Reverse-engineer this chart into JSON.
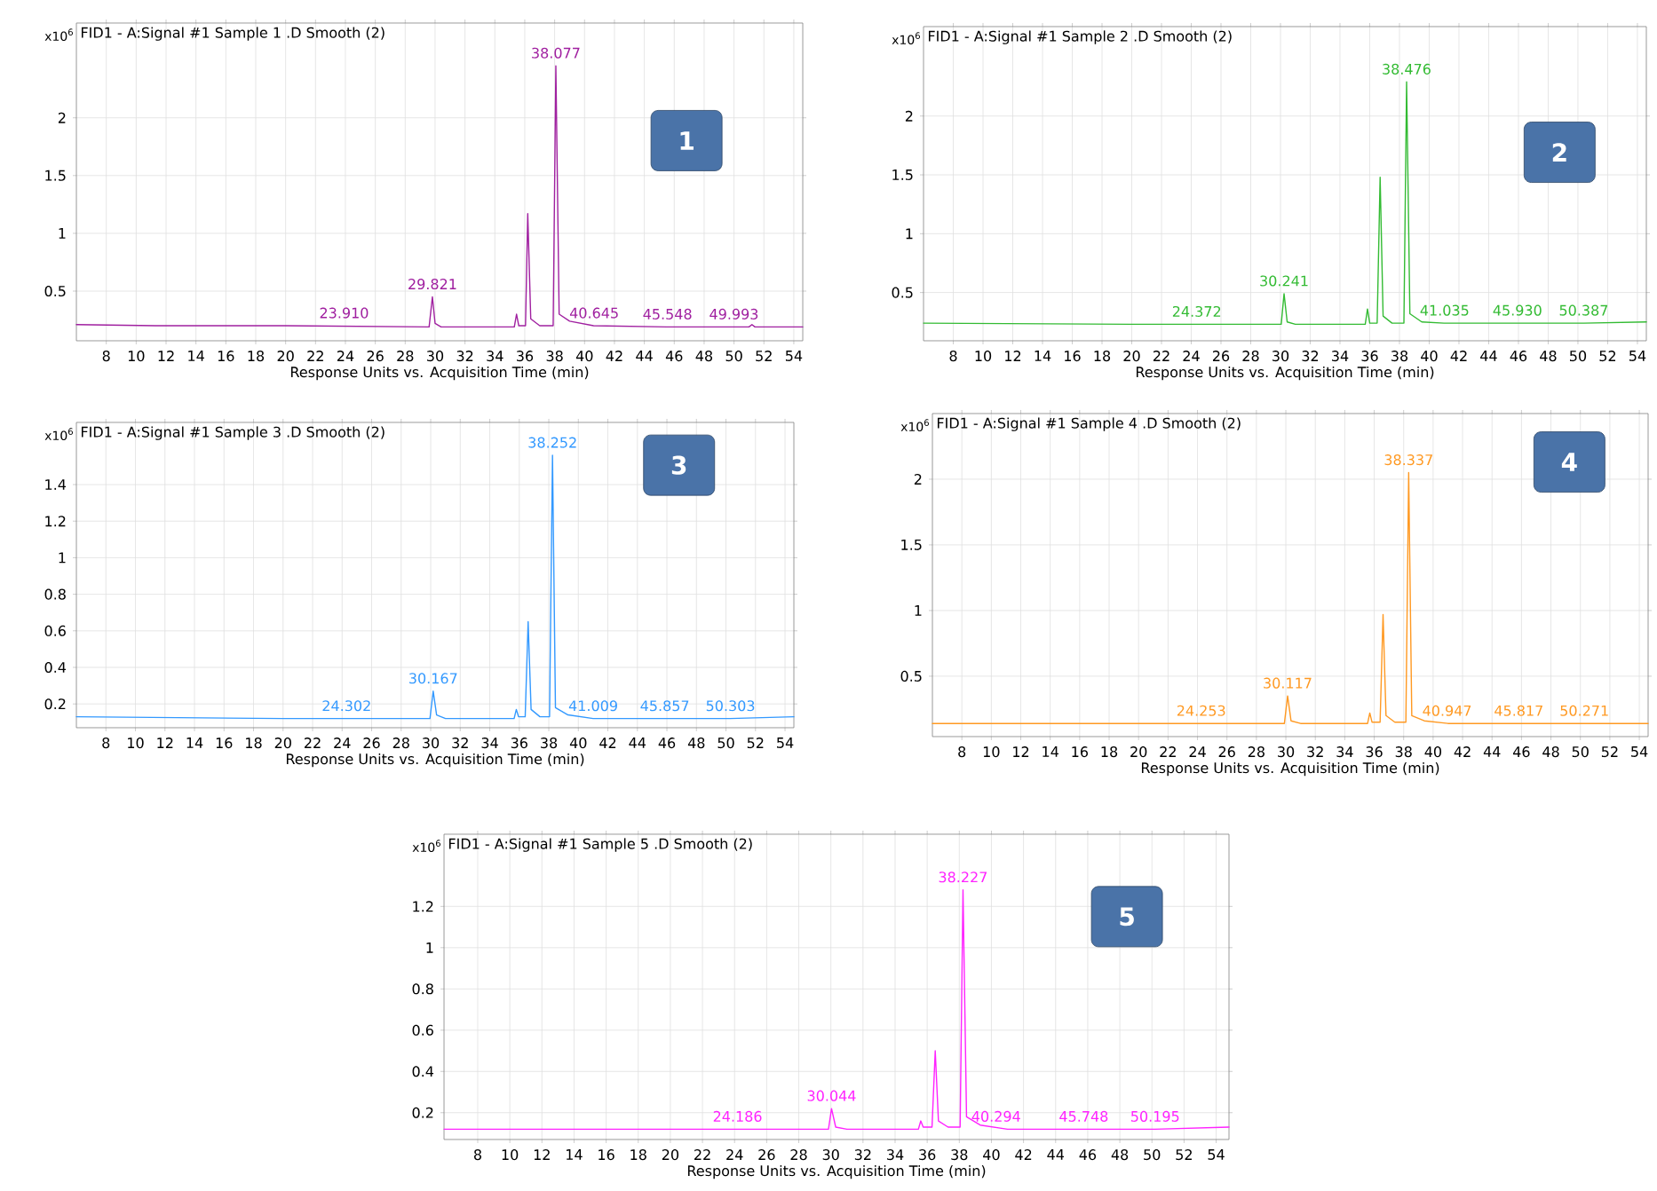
{
  "chart_data": [
    {
      "type": "line",
      "title": "FID1 - A:Signal #1 Sample 1 .D  Smooth (2)",
      "xlabel": "Response Units vs. Acquisition Time (min)",
      "ylabel": "x10$^{6}$",
      "xlim": [
        6,
        54.6
      ],
      "ylim": [
        0.07,
        2.82
      ],
      "xticks": [
        8,
        10,
        12,
        14,
        16,
        18,
        20,
        22,
        24,
        26,
        28,
        30,
        32,
        34,
        36,
        38,
        40,
        42,
        44,
        46,
        48,
        50,
        52,
        54
      ],
      "yticks": [
        0.5,
        1,
        1.5,
        2
      ],
      "grid": true,
      "series": [
        {
          "color": "#a020a0",
          "x": [
            6,
            11.3,
            20,
            29.6,
            29.82,
            30.0,
            30.4,
            35.3,
            35.45,
            35.6,
            36.05,
            36.2,
            36.4,
            37.0,
            37.9,
            38.08,
            38.3,
            39,
            40.6,
            45.5,
            51.0,
            51.2,
            51.4,
            54.6
          ],
          "values": [
            0.21,
            0.2,
            0.2,
            0.19,
            0.45,
            0.22,
            0.19,
            0.19,
            0.3,
            0.2,
            0.2,
            1.17,
            0.26,
            0.2,
            0.2,
            2.45,
            0.3,
            0.24,
            0.2,
            0.19,
            0.19,
            0.21,
            0.19,
            0.19
          ]
        }
      ],
      "annotations": [
        "1",
        {
          "text": "23.910",
          "x": 23.91,
          "y": 0.2
        },
        {
          "text": "29.821",
          "x": 29.821,
          "y": 0.45
        },
        {
          "text": "38.077",
          "x": 38.077,
          "y": 2.45
        },
        {
          "text": "40.645",
          "x": 40.645,
          "y": 0.2
        },
        {
          "text": "45.548",
          "x": 45.548,
          "y": 0.19
        },
        {
          "text": "49.993",
          "x": 49.993,
          "y": 0.19
        }
      ]
    },
    {
      "type": "line",
      "title": "FID1 - A:Signal #1 Sample 2 .D  Smooth (2)",
      "xlabel": "Response Units vs. Acquisition Time (min)",
      "ylabel": "x10$^{6}$",
      "xlim": [
        6,
        54.6
      ],
      "ylim": [
        0.09,
        2.76
      ],
      "xticks": [
        8,
        10,
        12,
        14,
        16,
        18,
        20,
        22,
        24,
        26,
        28,
        30,
        32,
        34,
        36,
        38,
        40,
        42,
        44,
        46,
        48,
        50,
        52,
        54
      ],
      "yticks": [
        0.5,
        1,
        1.5,
        2
      ],
      "grid": true,
      "series": [
        {
          "color": "#33bb33",
          "x": [
            6,
            20,
            30.05,
            30.24,
            30.45,
            31,
            35.7,
            35.85,
            36.0,
            36.5,
            36.7,
            36.9,
            37.5,
            38.3,
            38.48,
            38.7,
            39.5,
            41,
            50.4,
            54.6
          ],
          "values": [
            0.24,
            0.23,
            0.23,
            0.49,
            0.25,
            0.23,
            0.23,
            0.36,
            0.24,
            0.24,
            1.48,
            0.3,
            0.24,
            0.24,
            2.29,
            0.32,
            0.25,
            0.24,
            0.24,
            0.25
          ]
        }
      ],
      "annotations": [
        "2",
        {
          "text": "24.372",
          "x": 24.372,
          "y": 0.23
        },
        {
          "text": "30.241",
          "x": 30.241,
          "y": 0.49
        },
        {
          "text": "38.476",
          "x": 38.476,
          "y": 2.29
        },
        {
          "text": "41.035",
          "x": 41.035,
          "y": 0.24
        },
        {
          "text": "45.930",
          "x": 45.93,
          "y": 0.24
        },
        {
          "text": "50.387",
          "x": 50.387,
          "y": 0.24
        }
      ]
    },
    {
      "type": "line",
      "title": "FID1 - A:Signal #1 Sample 3 .D  Smooth (2)",
      "xlabel": "Response Units vs. Acquisition Time (min)",
      "ylabel": "x10$^{6}$",
      "xlim": [
        6,
        54.6
      ],
      "ylim": [
        0.07,
        1.74
      ],
      "xticks": [
        8,
        10,
        12,
        14,
        16,
        18,
        20,
        22,
        24,
        26,
        28,
        30,
        32,
        34,
        36,
        38,
        40,
        42,
        44,
        46,
        48,
        50,
        52,
        54
      ],
      "yticks": [
        0.2,
        0.4,
        0.6,
        0.8,
        1,
        1.2,
        1.4
      ],
      "grid": true,
      "series": [
        {
          "color": "#3399ff",
          "x": [
            6,
            20,
            29.95,
            30.17,
            30.4,
            31,
            35.65,
            35.8,
            35.95,
            36.4,
            36.6,
            36.8,
            37.4,
            38.05,
            38.25,
            38.45,
            39.3,
            41,
            50.3,
            54.6
          ],
          "values": [
            0.13,
            0.12,
            0.12,
            0.27,
            0.14,
            0.12,
            0.12,
            0.17,
            0.13,
            0.13,
            0.65,
            0.17,
            0.13,
            0.13,
            1.56,
            0.18,
            0.14,
            0.12,
            0.12,
            0.13
          ]
        }
      ],
      "annotations": [
        "3",
        {
          "text": "24.302",
          "x": 24.302,
          "y": 0.12
        },
        {
          "text": "30.167",
          "x": 30.167,
          "y": 0.27
        },
        {
          "text": "38.252",
          "x": 38.252,
          "y": 1.56
        },
        {
          "text": "41.009",
          "x": 41.009,
          "y": 0.12
        },
        {
          "text": "45.857",
          "x": 45.857,
          "y": 0.12
        },
        {
          "text": "50.303",
          "x": 50.303,
          "y": 0.12
        }
      ]
    },
    {
      "type": "line",
      "title": "FID1 - A:Signal #1 Sample 4 .D  Smooth (2)",
      "xlabel": "Response Units vs. Acquisition Time (min)",
      "ylabel": "x10$^{6}$",
      "xlim": [
        6,
        54.6
      ],
      "ylim": [
        0.04,
        2.5
      ],
      "xticks": [
        8,
        10,
        12,
        14,
        16,
        18,
        20,
        22,
        24,
        26,
        28,
        30,
        32,
        34,
        36,
        38,
        40,
        42,
        44,
        46,
        48,
        50,
        52,
        54
      ],
      "yticks": [
        0.5,
        1,
        1.5,
        2
      ],
      "grid": true,
      "series": [
        {
          "color": "#ff9922",
          "x": [
            6,
            20,
            29.9,
            30.12,
            30.35,
            31,
            35.55,
            35.7,
            35.85,
            36.4,
            36.6,
            36.8,
            37.4,
            38.15,
            38.34,
            38.55,
            39.4,
            41,
            50.3,
            54.6
          ],
          "values": [
            0.14,
            0.14,
            0.14,
            0.35,
            0.16,
            0.14,
            0.14,
            0.22,
            0.15,
            0.15,
            0.97,
            0.2,
            0.15,
            0.15,
            2.05,
            0.2,
            0.16,
            0.14,
            0.14,
            0.14
          ]
        }
      ],
      "annotations": [
        "4",
        {
          "text": "24.253",
          "x": 24.253,
          "y": 0.14
        },
        {
          "text": "30.117",
          "x": 30.117,
          "y": 0.35
        },
        {
          "text": "38.337",
          "x": 38.337,
          "y": 2.05
        },
        {
          "text": "40.947",
          "x": 40.947,
          "y": 0.14
        },
        {
          "text": "45.817",
          "x": 45.817,
          "y": 0.14
        },
        {
          "text": "50.271",
          "x": 50.271,
          "y": 0.14
        }
      ]
    },
    {
      "type": "line",
      "title": "FID1 - A:Signal #1 Sample 5 .D  Smooth (2)",
      "xlabel": "Response Units vs. Acquisition Time (min)",
      "ylabel": "x10$^{6}$",
      "xlim": [
        5.9,
        54.8
      ],
      "ylim": [
        0.07,
        1.55
      ],
      "xticks": [
        8,
        10,
        12,
        14,
        16,
        18,
        20,
        22,
        24,
        26,
        28,
        30,
        32,
        34,
        36,
        38,
        40,
        42,
        44,
        46,
        48,
        50,
        52,
        54
      ],
      "yticks": [
        0.2,
        0.4,
        0.6,
        0.8,
        1,
        1.2
      ],
      "grid": true,
      "series": [
        {
          "color": "#ff22ff",
          "x": [
            5.9,
            20,
            29.85,
            30.04,
            30.3,
            31,
            35.45,
            35.6,
            35.75,
            36.3,
            36.5,
            36.7,
            37.3,
            38.05,
            38.23,
            38.45,
            39.3,
            41,
            50.2,
            54.8
          ],
          "values": [
            0.12,
            0.12,
            0.12,
            0.22,
            0.13,
            0.12,
            0.12,
            0.16,
            0.13,
            0.13,
            0.5,
            0.16,
            0.13,
            0.13,
            1.28,
            0.18,
            0.14,
            0.12,
            0.12,
            0.13
          ]
        }
      ],
      "annotations": [
        "5",
        {
          "text": "24.186",
          "x": 24.186,
          "y": 0.12
        },
        {
          "text": "30.044",
          "x": 30.044,
          "y": 0.22
        },
        {
          "text": "38.227",
          "x": 38.227,
          "y": 1.28
        },
        {
          "text": "40.294",
          "x": 40.294,
          "y": 0.12
        },
        {
          "text": "45.748",
          "x": 45.748,
          "y": 0.12
        },
        {
          "text": "50.195",
          "x": 50.195,
          "y": 0.12
        }
      ]
    }
  ]
}
